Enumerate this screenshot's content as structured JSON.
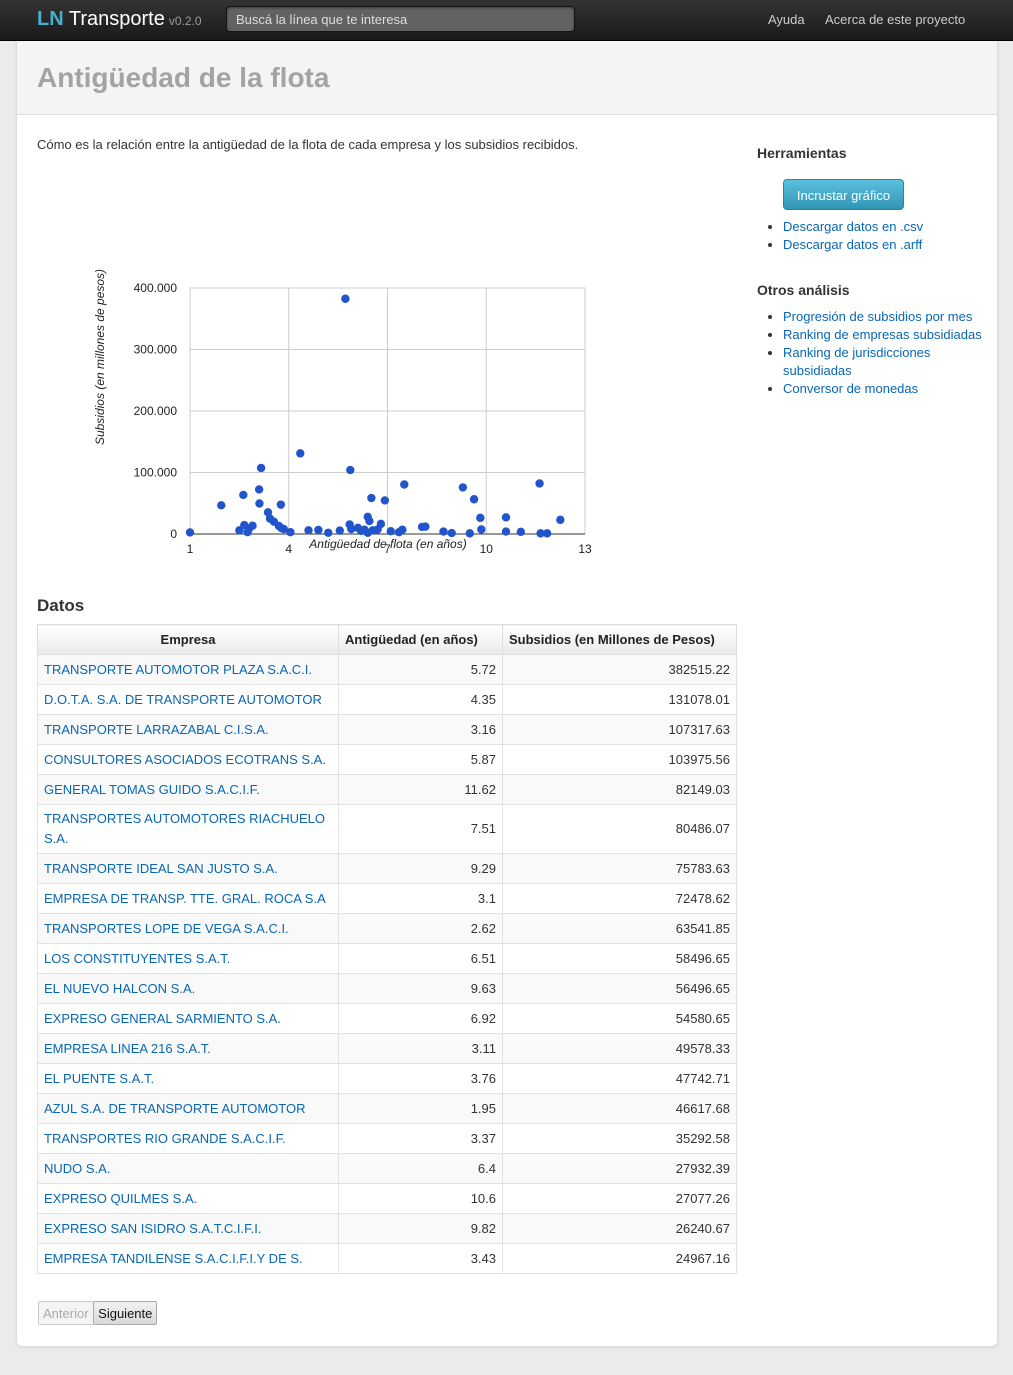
{
  "navbar": {
    "brand_ln": "LN",
    "brand_name": " Transporte",
    "version": "v0.2.0",
    "search_placeholder": "Buscá la línea que te interesa",
    "links": [
      "Ayuda",
      "Acerca de este proyecto"
    ]
  },
  "page": {
    "title": "Antigüedad de la flota",
    "intro": "Cómo es la relación entre la antigüedad de la flota de cada empresa y los subsidios recibidos."
  },
  "chart_data": {
    "type": "scatter",
    "title": "",
    "xlabel": "Antigüedad de flota (en años)",
    "ylabel": "Subsidios (en millones de pesos)",
    "xlim": [
      1,
      13
    ],
    "ylim": [
      0,
      400000
    ],
    "xticks": [
      "1",
      "4",
      "7",
      "10",
      "13"
    ],
    "yticks": [
      "0",
      "100.000",
      "200.000",
      "300.000",
      "400.000"
    ],
    "grid": true,
    "color": "#2255cc",
    "points": [
      [
        5.72,
        382515.22
      ],
      [
        4.35,
        131078.01
      ],
      [
        3.16,
        107317.63
      ],
      [
        5.87,
        103975.56
      ],
      [
        11.62,
        82149.03
      ],
      [
        7.51,
        80486.07
      ],
      [
        9.29,
        75783.63
      ],
      [
        3.1,
        72478.62
      ],
      [
        2.62,
        63541.85
      ],
      [
        6.51,
        58496.65
      ],
      [
        9.63,
        56496.65
      ],
      [
        6.92,
        54580.65
      ],
      [
        3.11,
        49578.33
      ],
      [
        3.76,
        47742.71
      ],
      [
        1.95,
        46617.68
      ],
      [
        3.37,
        35292.58
      ],
      [
        6.4,
        27932.39
      ],
      [
        10.6,
        27077.26
      ],
      [
        9.82,
        26240.67
      ],
      [
        3.43,
        24967.16
      ],
      [
        12.25,
        23000
      ],
      [
        6.45,
        21000
      ],
      [
        3.55,
        20000
      ],
      [
        6.8,
        16500
      ],
      [
        5.85,
        15500
      ],
      [
        2.65,
        14500
      ],
      [
        2.9,
        13500
      ],
      [
        3.7,
        13000
      ],
      [
        8.15,
        12000
      ],
      [
        8.05,
        11500
      ],
      [
        6.1,
        10000
      ],
      [
        3.78,
        9500
      ],
      [
        2.8,
        9000
      ],
      [
        3.85,
        8000
      ],
      [
        5.9,
        8000
      ],
      [
        9.85,
        7500
      ],
      [
        6.7,
        7500
      ],
      [
        6.3,
        7000
      ],
      [
        7.45,
        7000
      ],
      [
        4.9,
        6500
      ],
      [
        2.5,
        6000
      ],
      [
        4.6,
        6000
      ],
      [
        6.55,
        6000
      ],
      [
        5.55,
        5500
      ],
      [
        6.2,
        5000
      ],
      [
        7.1,
        4500
      ],
      [
        8.7,
        4000
      ],
      [
        10.6,
        4000
      ],
      [
        11.05,
        3500
      ],
      [
        2.75,
        3000
      ],
      [
        4.05,
        3000
      ],
      [
        7.35,
        3000
      ],
      [
        1.0,
        2500
      ],
      [
        5.2,
        2000
      ],
      [
        6.4,
        2000
      ],
      [
        8.95,
        1500
      ],
      [
        9.5,
        1000
      ],
      [
        11.65,
        1000
      ],
      [
        11.85,
        1000
      ]
    ]
  },
  "sidebar": {
    "tools_heading": "Herramientas",
    "embed_button": "Incrustar gráfico",
    "downloads": [
      "Descargar datos en .csv",
      "Descargar datos en .arff"
    ],
    "other_heading": "Otros análisis",
    "other_links": [
      "Progresión de subsidios por mes",
      "Ranking de empresas subsidiadas",
      "Ranking de jurisdicciones subsidiadas",
      "Conversor de monedas"
    ]
  },
  "table": {
    "heading": "Datos",
    "columns": [
      "Empresa",
      "Antigüedad (en años)",
      "Subsidios (en Millones de Pesos)"
    ],
    "rows": [
      [
        "TRANSPORTE AUTOMOTOR PLAZA S.A.C.I.",
        "5.72",
        "382515.22"
      ],
      [
        "D.O.T.A. S.A. DE TRANSPORTE AUTOMOTOR",
        "4.35",
        "131078.01"
      ],
      [
        "TRANSPORTE LARRAZABAL C.I.S.A.",
        "3.16",
        "107317.63"
      ],
      [
        "CONSULTORES ASOCIADOS ECOTRANS S.A.",
        "5.87",
        "103975.56"
      ],
      [
        "GENERAL TOMAS GUIDO S.A.C.I.F.",
        "11.62",
        "82149.03"
      ],
      [
        "TRANSPORTES AUTOMOTORES RIACHUELO S.A.",
        "7.51",
        "80486.07"
      ],
      [
        "TRANSPORTE IDEAL SAN JUSTO S.A.",
        "9.29",
        "75783.63"
      ],
      [
        "EMPRESA DE TRANSP. TTE. GRAL. ROCA S.A",
        "3.1",
        "72478.62"
      ],
      [
        "TRANSPORTES LOPE DE VEGA S.A.C.I.",
        "2.62",
        "63541.85"
      ],
      [
        "LOS CONSTITUYENTES S.A.T.",
        "6.51",
        "58496.65"
      ],
      [
        "EL NUEVO HALCON S.A.",
        "9.63",
        "56496.65"
      ],
      [
        "EXPRESO GENERAL SARMIENTO S.A.",
        "6.92",
        "54580.65"
      ],
      [
        "EMPRESA LINEA 216 S.A.T.",
        "3.11",
        "49578.33"
      ],
      [
        "EL PUENTE S.A.T.",
        "3.76",
        "47742.71"
      ],
      [
        "AZUL S.A. DE TRANSPORTE AUTOMOTOR",
        "1.95",
        "46617.68"
      ],
      [
        "TRANSPORTES RIO GRANDE S.A.C.I.F.",
        "3.37",
        "35292.58"
      ],
      [
        "NUDO S.A.",
        "6.4",
        "27932.39"
      ],
      [
        "EXPRESO QUILMES S.A.",
        "10.6",
        "27077.26"
      ],
      [
        "EXPRESO SAN ISIDRO S.A.T.C.I.F.I.",
        "9.82",
        "26240.67"
      ],
      [
        "EMPRESA TANDILENSE S.A.C.I.F.I.Y DE S.",
        "3.43",
        "24967.16"
      ]
    ]
  },
  "pager": {
    "prev": "Anterior",
    "next": "Siguiente"
  }
}
